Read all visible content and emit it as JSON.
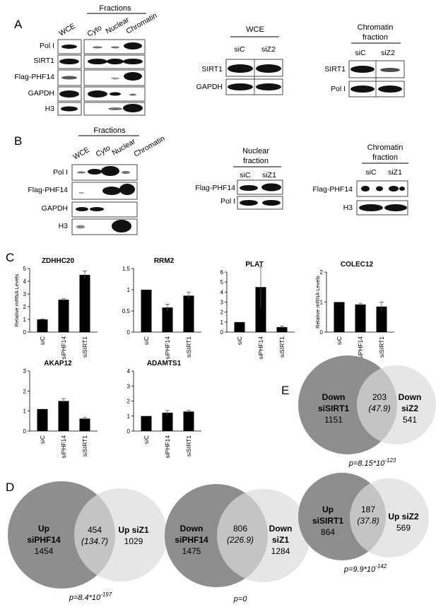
{
  "panelA": {
    "letter": "A",
    "left": {
      "fractions_header": "Fractions",
      "lanes": [
        "WCE",
        "Cyto",
        "Nuclear",
        "Chromatin"
      ],
      "rows": [
        "Pol I",
        "SIRT1",
        "Flag-PHF14",
        "GAPDH",
        "H3"
      ]
    },
    "middle": {
      "header": "WCE",
      "lanes": [
        "siC",
        "siZ2"
      ],
      "rows": [
        "SIRT1",
        "GAPDH"
      ]
    },
    "right": {
      "header_line1": "Chromatin",
      "header_line2": "fraction",
      "lanes": [
        "siC",
        "siZ2"
      ],
      "rows": [
        "SIRT1",
        "Pol I"
      ]
    }
  },
  "panelB": {
    "letter": "B",
    "left": {
      "fractions_header": "Fractions",
      "lanes": [
        "WCE",
        "Cyto",
        "Nuclear",
        "Chromatin"
      ],
      "rows": [
        "Pol I",
        "Flag-PHF14",
        "GAPDH",
        "H3"
      ]
    },
    "middle": {
      "header_line1": "Nuclear",
      "header_line2": "fraction",
      "lanes": [
        "siC",
        "siZ1"
      ],
      "rows": [
        "Flag-PHF14",
        "Pol I"
      ]
    },
    "right": {
      "header_line1": "Chromatin",
      "header_line2": "fraction",
      "lanes": [
        "siC",
        "siZ1"
      ],
      "rows": [
        "Flag-PHF14",
        "H3"
      ]
    }
  },
  "panelC": {
    "letter": "C",
    "ylabel": "Relative mRNA Levels"
  },
  "chart_data": [
    {
      "type": "bar",
      "title": "ZDHHC20",
      "categories": [
        "siC",
        "siPHF14",
        "siSIRT1"
      ],
      "values": [
        1.0,
        2.55,
        4.5
      ],
      "errors": [
        0.03,
        0.08,
        0.3
      ],
      "ylim": [
        0,
        5
      ],
      "yticks": [
        "0",
        "1",
        "2",
        "3",
        "4",
        "5"
      ],
      "ylabel": "Relative mRNA Levels"
    },
    {
      "type": "bar",
      "title": "RRM2",
      "categories": [
        "siC",
        "siPHF14",
        "siSIRT1"
      ],
      "values": [
        1.0,
        0.58,
        0.86
      ],
      "errors": [
        0.0,
        0.08,
        0.08
      ],
      "ylim": [
        0,
        1.5
      ],
      "yticks": [
        "0",
        "0.5",
        "1",
        "1.5"
      ],
      "ylabel": ""
    },
    {
      "type": "bar",
      "title": "PLAT",
      "categories": [
        "siC",
        "siPHF14",
        "siSIRT1"
      ],
      "values": [
        1.0,
        4.5,
        0.5
      ],
      "errors": [
        0.0,
        2.0,
        0.1
      ],
      "ylim": [
        0,
        6
      ],
      "yticks": [
        "0",
        "1",
        "2",
        "3",
        "4",
        "5",
        "6"
      ],
      "ylabel": ""
    },
    {
      "type": "bar",
      "title": "COLEC12",
      "categories": [
        "siC",
        "siPHF14",
        "siSIRT1"
      ],
      "values": [
        1.0,
        0.92,
        0.85
      ],
      "errors": [
        0.0,
        0.04,
        0.15
      ],
      "ylim": [
        0,
        2
      ],
      "yticks": [
        "0",
        "1",
        "2"
      ],
      "ylabel": "Relative mRNA Levels"
    },
    {
      "type": "bar",
      "title": "AKAP12",
      "categories": [
        "siC",
        "siPHF14",
        "siSIRT1"
      ],
      "values": [
        1.1,
        1.5,
        0.62
      ],
      "errors": [
        0.0,
        0.12,
        0.06
      ],
      "ylim": [
        0,
        3
      ],
      "yticks": [
        "0",
        "1",
        "2",
        "3"
      ],
      "ylabel": ""
    },
    {
      "type": "bar",
      "title": "ADAMTS1",
      "categories": [
        "siC",
        "siPHF14",
        "siSIRT1"
      ],
      "values": [
        1.0,
        1.22,
        1.3
      ],
      "errors": [
        0.0,
        0.15,
        0.08
      ],
      "ylim": [
        0,
        4
      ],
      "yticks": [
        "0",
        "1",
        "2",
        "3",
        "4"
      ],
      "ylabel": ""
    }
  ],
  "panelD": {
    "letter": "D",
    "venn1": {
      "left_line1": "Up",
      "left_line2": "siPHF14",
      "left_count": "1454",
      "overlap_count": "454",
      "overlap_expected": "(134.7)",
      "right_line1": "Up siZ1",
      "right_count": "1029",
      "p": "p=8.4*10",
      "p_exp": "-197"
    },
    "venn2": {
      "left_line1": "Down",
      "left_line2": "siPHF14",
      "left_count": "1475",
      "overlap_count": "806",
      "overlap_expected": "(226.9)",
      "right_line1": "Down",
      "right_line2": "siZ1",
      "right_count": "1284",
      "p": "p=0"
    }
  },
  "panelE": {
    "letter": "E",
    "venn1": {
      "left_line1": "Down",
      "left_line2": "siSIRT1",
      "left_count": "1151",
      "overlap_count": "203",
      "overlap_expected": "(47.9)",
      "right_line1": "Down",
      "right_line2": "siZ2",
      "right_count": "541",
      "p": "p=8.15*10",
      "p_exp": "-123"
    },
    "venn2": {
      "left_line1": "Up",
      "left_line2": "siSIRT1",
      "left_count": "864",
      "overlap_count": "187",
      "overlap_expected": "(37.8)",
      "right_line1": "Up siZ2",
      "right_count": "569",
      "p": "p=9.9*10",
      "p_exp": "-142"
    }
  },
  "colors": {
    "venn_dark": "#8e8e8e",
    "venn_light": "#dcdcdc",
    "bar": "#000000"
  }
}
